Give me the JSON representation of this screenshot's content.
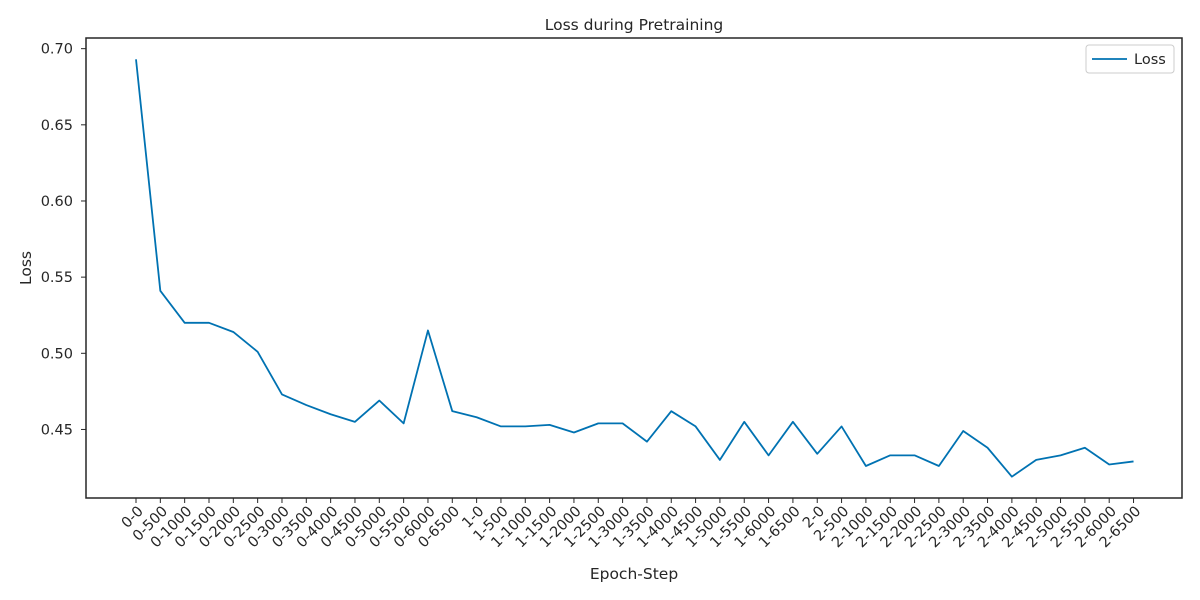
{
  "chart_data": {
    "type": "line",
    "title": "Loss during Pretraining",
    "xlabel": "Epoch-Step",
    "ylabel": "Loss",
    "ylim": [
      0.405,
      0.707
    ],
    "yticks": [
      0.45,
      0.5,
      0.55,
      0.6,
      0.65,
      0.7
    ],
    "ytick_labels": [
      "0.45",
      "0.50",
      "0.55",
      "0.60",
      "0.65",
      "0.70"
    ],
    "grid": false,
    "legend": {
      "position": "top-right",
      "entries": [
        "Loss"
      ]
    },
    "colors": {
      "series": "#0072b2",
      "axes": "#262626"
    },
    "categories": [
      "0-0",
      "0-500",
      "0-1000",
      "0-1500",
      "0-2000",
      "0-2500",
      "0-3000",
      "0-3500",
      "0-4000",
      "0-4500",
      "0-5000",
      "0-5500",
      "0-6000",
      "0-6500",
      "1-0",
      "1-500",
      "1-1000",
      "1-1500",
      "1-2000",
      "1-2500",
      "1-3000",
      "1-3500",
      "1-4000",
      "1-4500",
      "1-5000",
      "1-5500",
      "1-6000",
      "1-6500",
      "2-0",
      "2-500",
      "2-1000",
      "2-1500",
      "2-2000",
      "2-2500",
      "2-3000",
      "2-3500",
      "2-4000",
      "2-4500",
      "2-5000",
      "2-5500",
      "2-6000",
      "2-6500"
    ],
    "series": [
      {
        "name": "Loss",
        "values": [
          0.693,
          0.541,
          0.52,
          0.52,
          0.514,
          0.501,
          0.473,
          0.466,
          0.46,
          0.455,
          0.469,
          0.454,
          0.515,
          0.462,
          0.458,
          0.452,
          0.452,
          0.453,
          0.448,
          0.454,
          0.454,
          0.442,
          0.462,
          0.452,
          0.43,
          0.455,
          0.433,
          0.455,
          0.434,
          0.452,
          0.426,
          0.433,
          0.433,
          0.426,
          0.449,
          0.438,
          0.419,
          0.43,
          0.433,
          0.438,
          0.427,
          0.429
        ]
      }
    ]
  }
}
